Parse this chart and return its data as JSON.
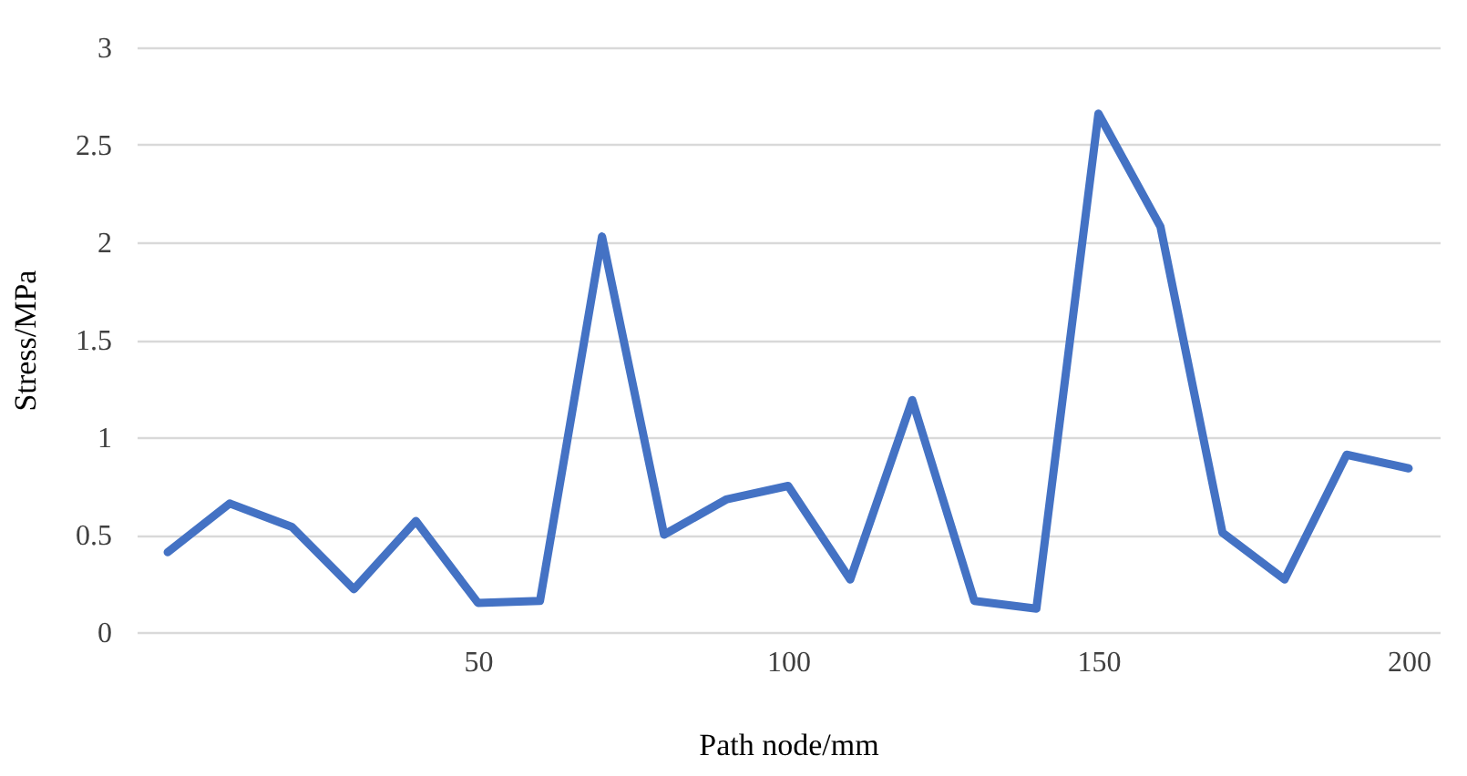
{
  "chart_data": {
    "type": "line",
    "xlabel": "Path node/mm",
    "ylabel": "Stress/MPa",
    "x": [
      0,
      10,
      20,
      30,
      40,
      50,
      60,
      70,
      80,
      90,
      100,
      110,
      120,
      130,
      140,
      150,
      160,
      170,
      180,
      190,
      200
    ],
    "series": [
      {
        "color": "#4472c4",
        "values": [
          0.41,
          0.66,
          0.54,
          0.22,
          0.57,
          0.15,
          0.16,
          2.03,
          0.5,
          0.68,
          0.75,
          0.27,
          1.19,
          0.16,
          0.12,
          2.66,
          2.08,
          0.51,
          0.27,
          0.91,
          0.84
        ]
      }
    ],
    "xlim": [
      -5,
      205
    ],
    "xticks": [
      50,
      100,
      150,
      200
    ],
    "ylim": [
      0,
      3
    ],
    "yticks": [
      0,
      0.5,
      1,
      1.5,
      2,
      2.5,
      3
    ],
    "grid": "y",
    "marker": "none",
    "line_style": "solid",
    "legend": false
  }
}
